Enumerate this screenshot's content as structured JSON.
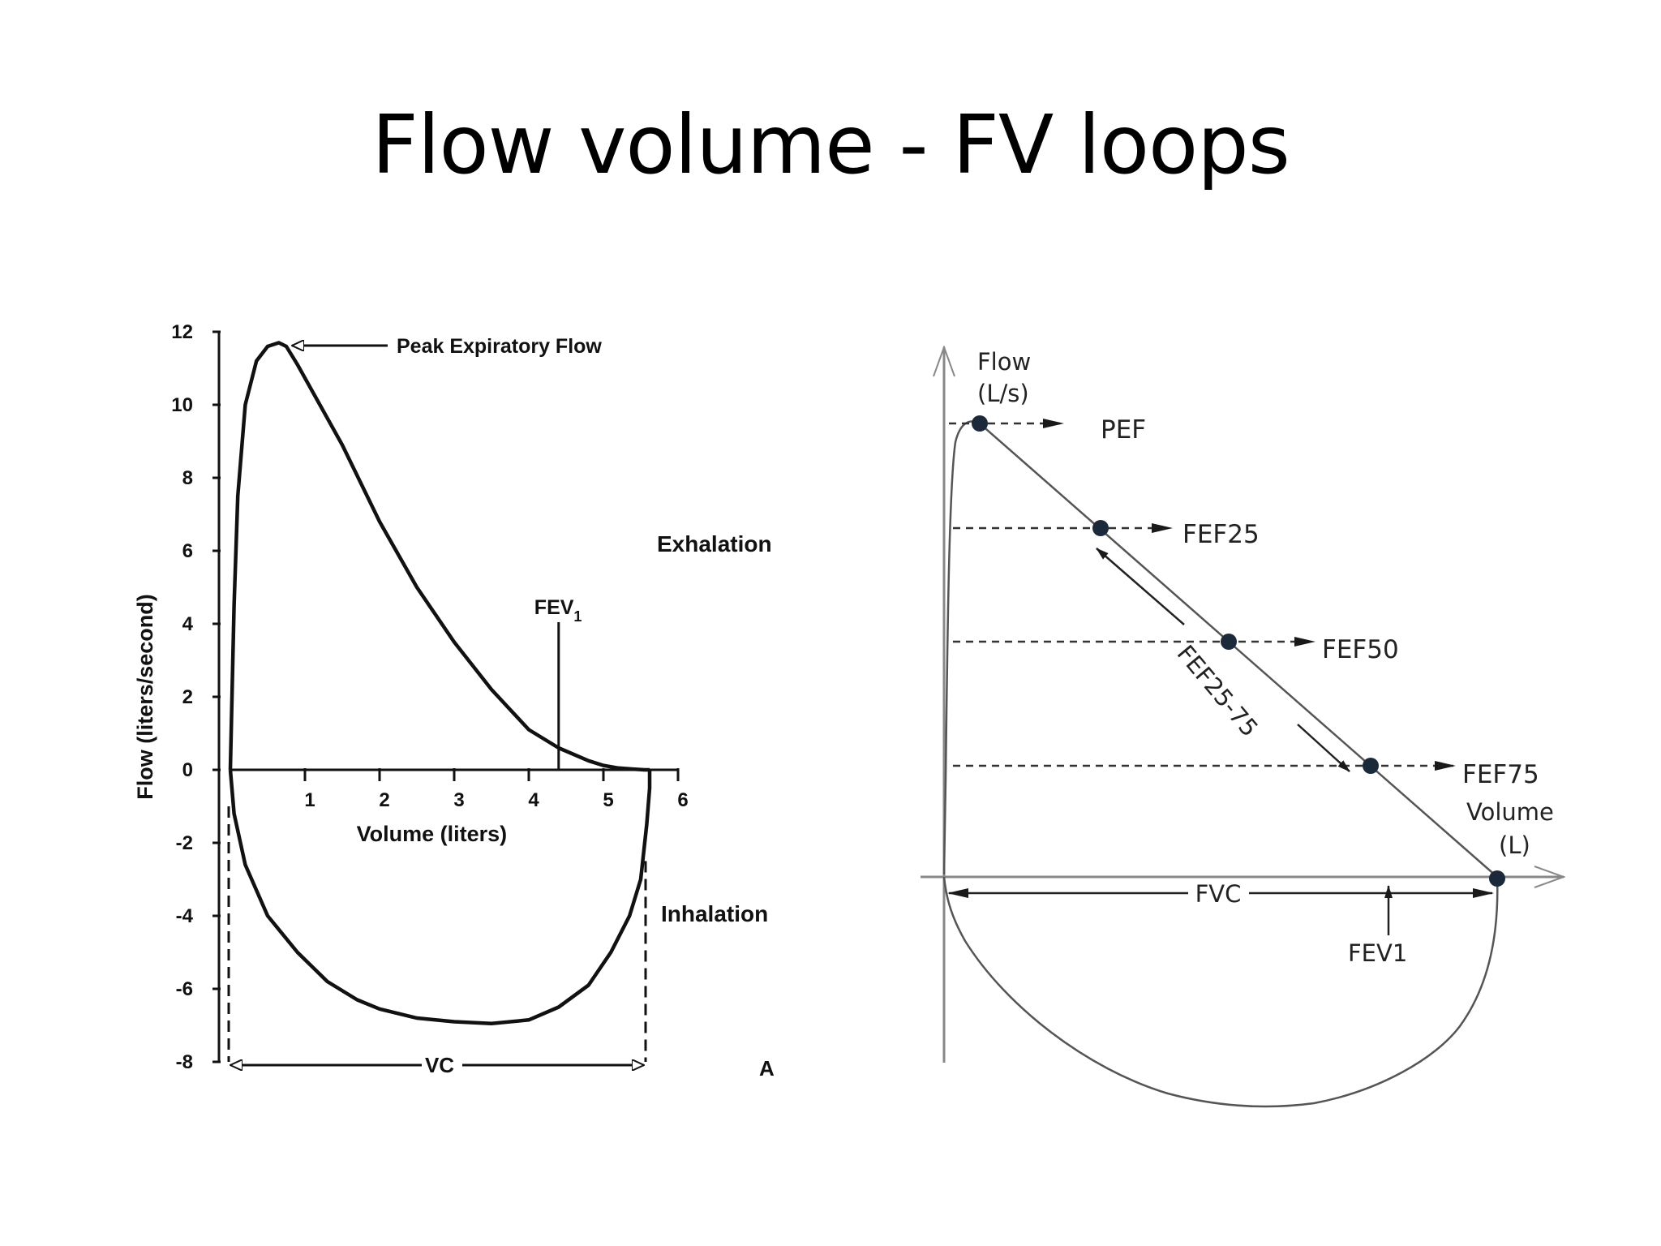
{
  "slide": {
    "title": "Flow volume - FV loops"
  },
  "chart_data": [
    {
      "type": "line",
      "title": "",
      "xlabel": "Volume (liters)",
      "ylabel": "Flow (liters/second)",
      "xlim": [
        0,
        6
      ],
      "ylim": [
        -8,
        12
      ],
      "x_ticks": [
        1,
        2,
        3,
        4,
        5,
        6
      ],
      "y_ticks": [
        12,
        10,
        8,
        6,
        4,
        2,
        0,
        -2,
        -4,
        -6,
        -8
      ],
      "grid": false,
      "panel_label": "A",
      "series": [
        {
          "name": "Exhalation",
          "x": [
            0.0,
            0.05,
            0.1,
            0.2,
            0.35,
            0.5,
            0.65,
            0.75,
            0.9,
            1.2,
            1.5,
            2.0,
            2.5,
            3.0,
            3.5,
            4.0,
            4.4,
            4.8,
            5.0,
            5.2,
            5.4,
            5.55,
            5.62
          ],
          "y": [
            0.0,
            4.5,
            7.5,
            10.0,
            11.2,
            11.6,
            11.7,
            11.6,
            11.1,
            10.0,
            8.9,
            6.8,
            5.0,
            3.5,
            2.2,
            1.1,
            0.6,
            0.25,
            0.12,
            0.05,
            0.02,
            0.0,
            0.0
          ]
        },
        {
          "name": "Inhalation",
          "x": [
            0.0,
            0.05,
            0.2,
            0.5,
            0.9,
            1.3,
            1.7,
            2.0,
            2.5,
            3.0,
            3.5,
            4.0,
            4.4,
            4.8,
            5.1,
            5.35,
            5.5,
            5.58,
            5.62,
            5.62
          ],
          "y": [
            0.0,
            -1.2,
            -2.6,
            -4.0,
            -5.0,
            -5.8,
            -6.3,
            -6.55,
            -6.8,
            -6.9,
            -6.95,
            -6.85,
            -6.5,
            -5.9,
            -5.0,
            -4.0,
            -3.0,
            -1.5,
            -0.5,
            0.0
          ]
        }
      ],
      "annotations": {
        "pef_label": "Peak Expiratory Flow",
        "fev_label": "FEV",
        "fev_sub": "1",
        "fev_x": 4.4,
        "exhalation_label": "Exhalation",
        "inhalation_label": "Inhalation",
        "vc_label": "VC"
      }
    },
    {
      "type": "line",
      "title": "",
      "xlabel_line1": "Volume",
      "xlabel_line2": "(L)",
      "ylabel_line1": "Flow",
      "ylabel_line2": "(L/s)",
      "grid": false,
      "points": [
        {
          "name": "PEF"
        },
        {
          "name": "FEF25"
        },
        {
          "name": "FEF50"
        },
        {
          "name": "FEF75"
        }
      ],
      "annotations": {
        "fef2575_label": "FEF25-75",
        "fvc_label": "FVC",
        "fev1_label": "FEV1"
      },
      "colors": {
        "point": "#1b2a3a",
        "line": "#555555"
      }
    }
  ]
}
